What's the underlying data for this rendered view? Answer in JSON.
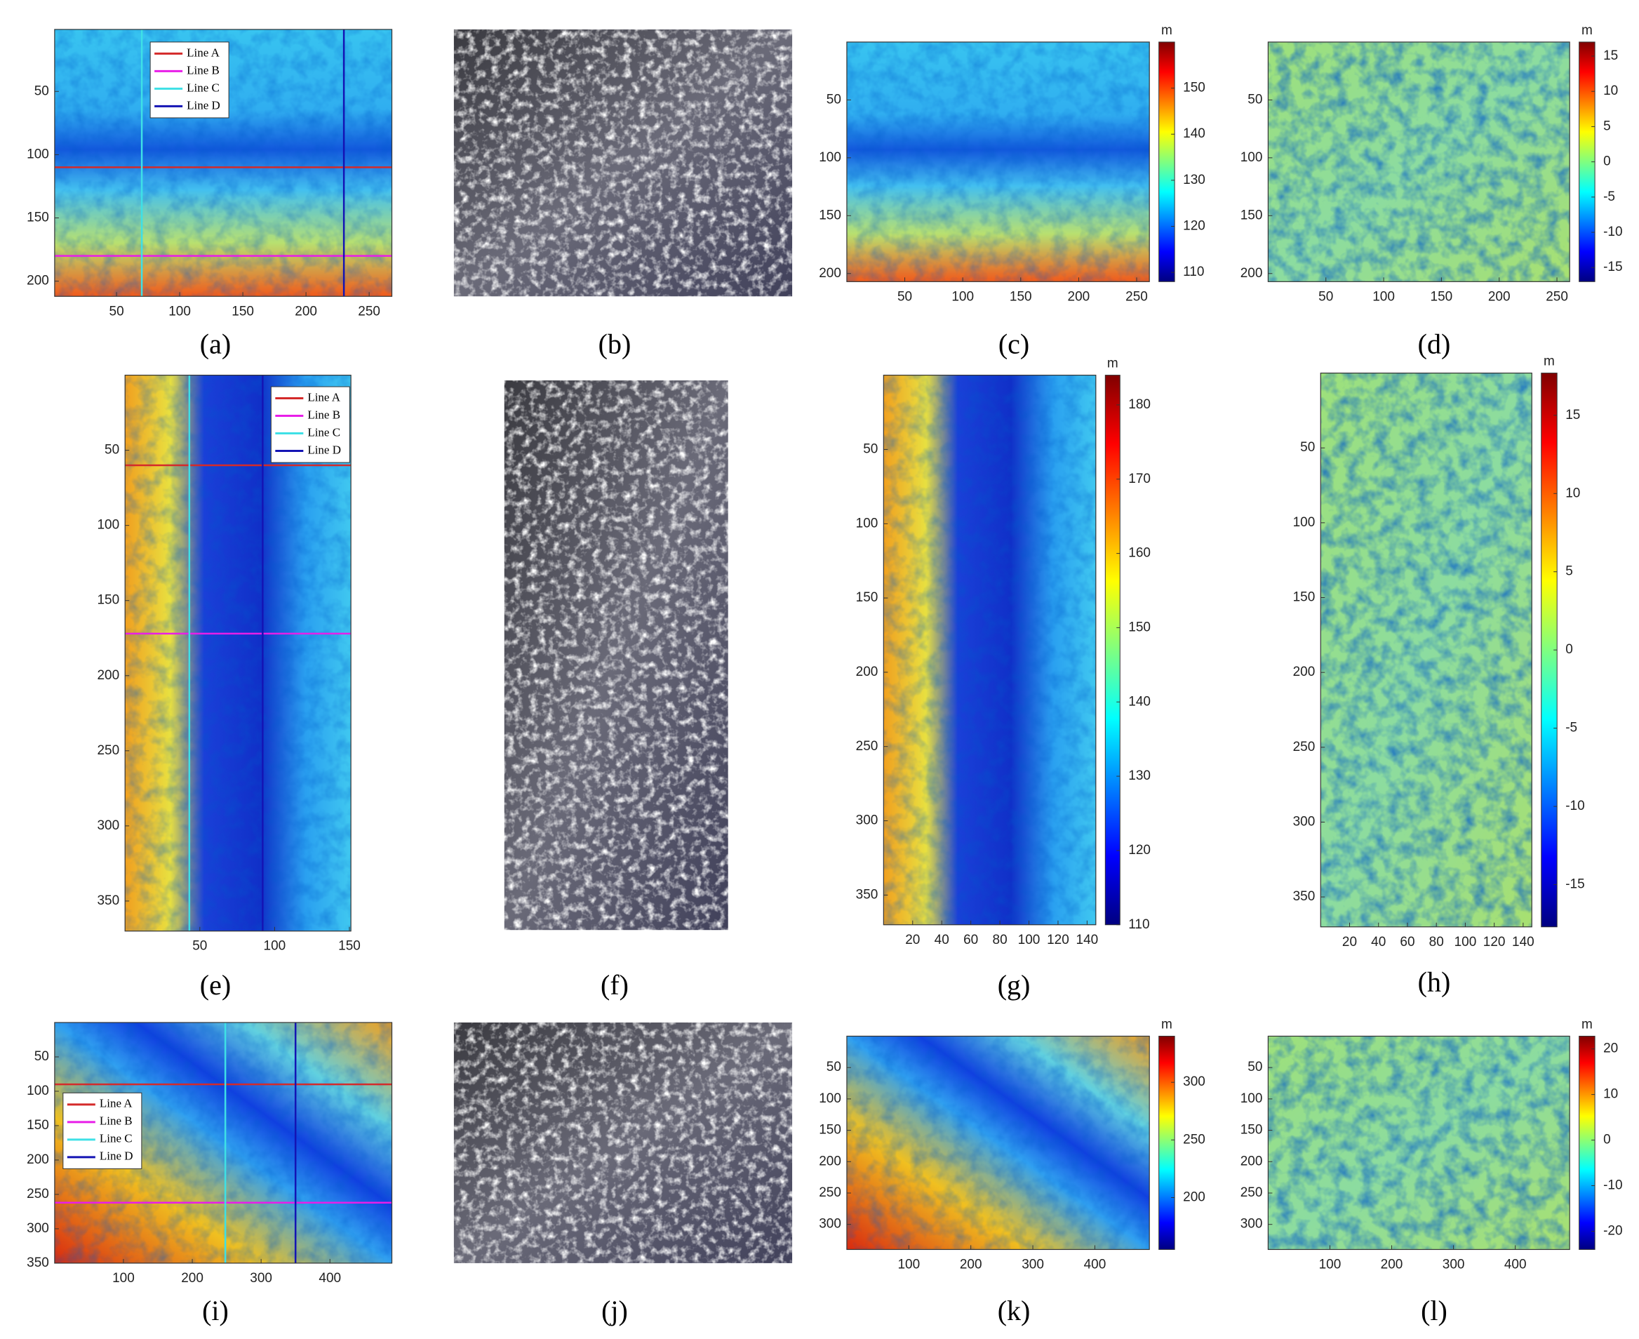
{
  "chart_data": [
    {
      "type": "heatmap",
      "caption": "(a)",
      "xlim": [
        1,
        268
      ],
      "xticks": [
        50,
        100,
        150,
        200,
        250
      ],
      "ylim": [
        212,
        1
      ],
      "yticks": [
        50,
        100,
        150,
        200
      ],
      "legend": [
        {
          "name": "Line A",
          "color": "#d42a2a",
          "orientation": "horizontal",
          "value": 110
        },
        {
          "name": "Line B",
          "color": "#e81ee8",
          "orientation": "horizontal",
          "value": 180
        },
        {
          "name": "Line C",
          "color": "#3ee0e6",
          "orientation": "vertical",
          "value": 70
        },
        {
          "name": "Line D",
          "color": "#1414b4",
          "orientation": "vertical",
          "value": 230
        }
      ]
    },
    {
      "type": "image",
      "caption": "(b)"
    },
    {
      "type": "heatmap",
      "caption": "(c)",
      "xlim": [
        0,
        261
      ],
      "xticks": [
        50,
        100,
        150,
        200,
        250
      ],
      "ylim": [
        207,
        0
      ],
      "yticks": [
        50,
        100,
        150,
        200
      ],
      "colorbar": {
        "label": "m",
        "lim": [
          108,
          160
        ],
        "ticks": [
          110,
          120,
          130,
          140,
          150
        ]
      }
    },
    {
      "type": "heatmap",
      "caption": "(d)",
      "xlim": [
        0,
        261
      ],
      "xticks": [
        50,
        100,
        150,
        200,
        250
      ],
      "ylim": [
        207,
        0
      ],
      "yticks": [
        50,
        100,
        150,
        200
      ],
      "colorbar": {
        "label": "m",
        "lim": [
          -17,
          17
        ],
        "ticks": [
          -15,
          -10,
          -5,
          0,
          5,
          10,
          15
        ]
      }
    },
    {
      "type": "heatmap",
      "caption": "(e)",
      "xlim": [
        0,
        151
      ],
      "xticks": [
        50,
        100,
        150
      ],
      "ylim": [
        370,
        0
      ],
      "yticks": [
        50,
        100,
        150,
        200,
        250,
        300,
        350
      ],
      "legend": [
        {
          "name": "Line A",
          "color": "#d42a2a",
          "orientation": "horizontal",
          "value": 60
        },
        {
          "name": "Line B",
          "color": "#e81ee8",
          "orientation": "horizontal",
          "value": 172
        },
        {
          "name": "Line C",
          "color": "#3ee0e6",
          "orientation": "vertical",
          "value": 43
        },
        {
          "name": "Line D",
          "color": "#1414b4",
          "orientation": "vertical",
          "value": 92
        }
      ]
    },
    {
      "type": "image",
      "caption": "(f)"
    },
    {
      "type": "heatmap",
      "caption": "(g)",
      "xlim": [
        0,
        146
      ],
      "xticks": [
        20,
        40,
        60,
        80,
        100,
        120,
        140
      ],
      "ylim": [
        370,
        0
      ],
      "yticks": [
        50,
        100,
        150,
        200,
        250,
        300,
        350
      ],
      "colorbar": {
        "label": "m",
        "lim": [
          110,
          184
        ],
        "ticks": [
          110,
          120,
          130,
          140,
          150,
          160,
          170,
          180
        ]
      }
    },
    {
      "type": "heatmap",
      "caption": "(h)",
      "xlim": [
        0,
        146
      ],
      "xticks": [
        20,
        40,
        60,
        80,
        100,
        120,
        140
      ],
      "ylim": [
        370,
        0
      ],
      "yticks": [
        50,
        100,
        150,
        200,
        250,
        300,
        350
      ],
      "colorbar": {
        "label": "m",
        "lim": [
          -17.7,
          17.7
        ],
        "ticks": [
          -15,
          -10,
          -5,
          0,
          5,
          10,
          15
        ]
      }
    },
    {
      "type": "heatmap",
      "caption": "(i)",
      "xlim": [
        0,
        490
      ],
      "xticks": [
        100,
        200,
        300,
        400
      ],
      "ylim": [
        350,
        0
      ],
      "yticks": [
        50,
        100,
        150,
        200,
        250,
        300,
        350
      ],
      "legend": [
        {
          "name": "Line A",
          "color": "#d42a2a",
          "orientation": "horizontal",
          "value": 90
        },
        {
          "name": "Line B",
          "color": "#e81ee8",
          "orientation": "horizontal",
          "value": 262
        },
        {
          "name": "Line C",
          "color": "#3ee0e6",
          "orientation": "vertical",
          "value": 248
        },
        {
          "name": "Line D",
          "color": "#1414b4",
          "orientation": "vertical",
          "value": 350
        }
      ]
    },
    {
      "type": "image",
      "caption": "(j)"
    },
    {
      "type": "heatmap",
      "caption": "(k)",
      "xlim": [
        0,
        488
      ],
      "xticks": [
        100,
        200,
        300,
        400
      ],
      "ylim": [
        340,
        0
      ],
      "yticks": [
        50,
        100,
        150,
        200,
        250,
        300
      ],
      "colorbar": {
        "label": "m",
        "lim": [
          155,
          340
        ],
        "ticks": [
          200,
          250,
          300
        ]
      }
    },
    {
      "type": "heatmap",
      "caption": "(l)",
      "xlim": [
        0,
        488
      ],
      "xticks": [
        100,
        200,
        300,
        400
      ],
      "ylim": [
        340,
        0
      ],
      "yticks": [
        50,
        100,
        150,
        200,
        250,
        300
      ],
      "colorbar": {
        "label": "m",
        "lim": [
          -24,
          22.8
        ],
        "ticks": [
          -20,
          -10,
          0,
          10,
          20
        ]
      }
    }
  ]
}
